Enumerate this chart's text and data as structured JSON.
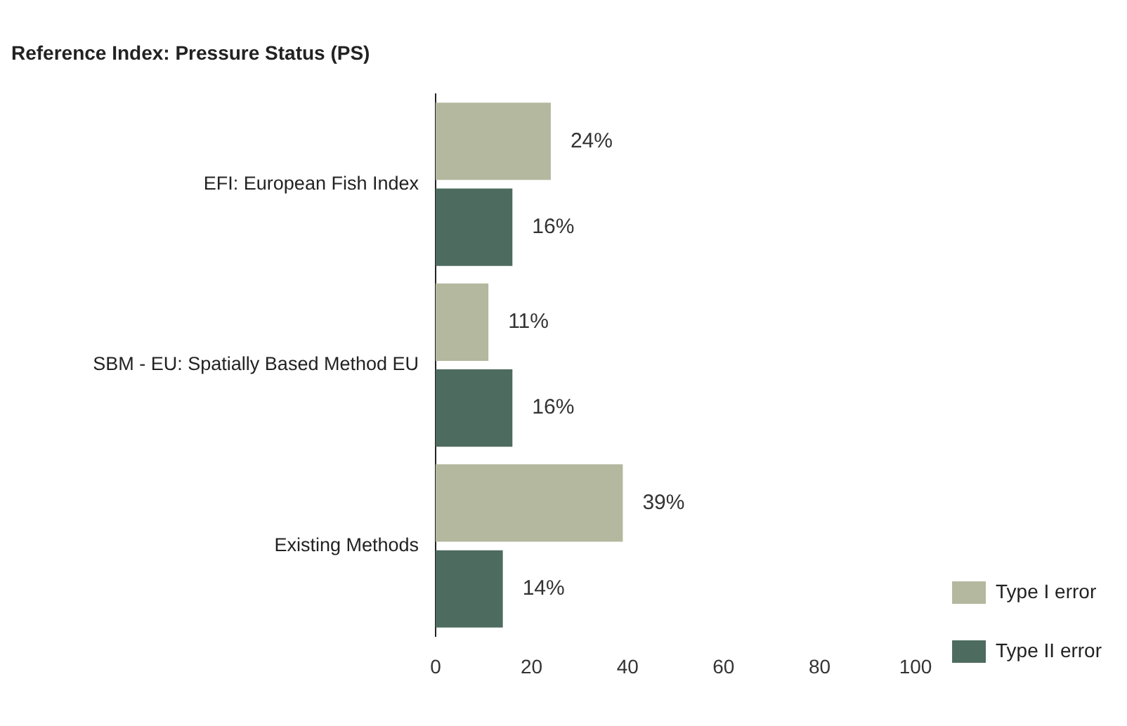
{
  "chart_data": {
    "type": "bar",
    "orientation": "horizontal",
    "title": "Reference Index: Pressure Status (PS)",
    "categories": [
      "EFI: European Fish Index",
      "SBM - EU: Spatially Based Method EU",
      "Existing Methods"
    ],
    "series": [
      {
        "name": "Type I error",
        "color": "#b3b89e",
        "values": [
          24,
          11,
          39
        ],
        "value_labels": [
          "24%",
          "11%",
          "39%"
        ]
      },
      {
        "name": "Type II error",
        "color": "#4d6b5e",
        "values": [
          16,
          16,
          14
        ],
        "value_labels": [
          "16%",
          "16%",
          "14%"
        ]
      }
    ],
    "xlim": [
      0,
      100
    ],
    "xticks": [
      0,
      20,
      40,
      60,
      80,
      100
    ],
    "grid": false,
    "legend": "bottom right"
  }
}
